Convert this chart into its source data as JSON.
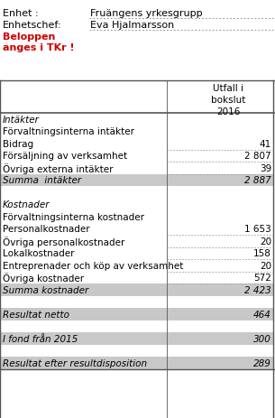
{
  "header_label1": "Enhet :",
  "header_value1": "Fruängens yrkesgrupp",
  "header_label2": "Enhetschef:",
  "header_value2": "Eva Hjalmarsson",
  "header_warning": "Beloppen\nanges i TKr !",
  "col_header": "Utfall i\nbokslut\n2016",
  "rows": [
    {
      "label": "Intäkter",
      "value": null,
      "style": "italic",
      "bg": null,
      "dotted": false
    },
    {
      "label": "Förvaltningsinterna intäkter",
      "value": null,
      "style": "normal",
      "bg": null,
      "dotted": false
    },
    {
      "label": "Bidrag",
      "value": "41",
      "style": "normal",
      "bg": null,
      "dotted": true
    },
    {
      "label": "Försäljning av verksamhet",
      "value": "2 807",
      "style": "normal",
      "bg": null,
      "dotted": true
    },
    {
      "label": "Övriga externa intäkter",
      "value": "39",
      "style": "normal",
      "bg": null,
      "dotted": true
    },
    {
      "label": "Summa  intäkter",
      "value": "2 887",
      "style": "italic",
      "bg": "#c8c8c8",
      "dotted": false
    },
    {
      "label": "",
      "value": null,
      "style": "normal",
      "bg": null,
      "dotted": false
    },
    {
      "label": "Kostnader",
      "value": null,
      "style": "italic",
      "bg": null,
      "dotted": false
    },
    {
      "label": "Förvaltningsinterna kostnader",
      "value": null,
      "style": "normal",
      "bg": null,
      "dotted": false
    },
    {
      "label": "Personalkostnader",
      "value": "1 653",
      "style": "normal",
      "bg": null,
      "dotted": true
    },
    {
      "label": "Övriga personalkostnader",
      "value": "20",
      "style": "normal",
      "bg": null,
      "dotted": true
    },
    {
      "label": "Lokalkostnader",
      "value": "158",
      "style": "normal",
      "bg": null,
      "dotted": true
    },
    {
      "label": "Entreprenader och köp av verksamhet",
      "value": "20",
      "style": "normal",
      "bg": null,
      "dotted": true
    },
    {
      "label": "Övriga kostnader",
      "value": "572",
      "style": "normal",
      "bg": null,
      "dotted": true
    },
    {
      "label": "Summa kostnader",
      "value": "2 423",
      "style": "italic",
      "bg": "#c8c8c8",
      "dotted": false
    },
    {
      "label": "",
      "value": null,
      "style": "normal",
      "bg": null,
      "dotted": false
    },
    {
      "label": "Resultat netto",
      "value": "464",
      "style": "italic",
      "bg": "#c8c8c8",
      "dotted": false
    },
    {
      "label": "",
      "value": null,
      "style": "normal",
      "bg": null,
      "dotted": false
    },
    {
      "label": "I fond från 2015",
      "value": "300",
      "style": "italic",
      "bg": "#c8c8c8",
      "dotted": false
    },
    {
      "label": "",
      "value": null,
      "style": "normal",
      "bg": null,
      "dotted": false
    },
    {
      "label": "Resultat efter resultdisposition",
      "value": "289",
      "style": "italic",
      "bg": "#c8c8c8",
      "dotted": false
    }
  ],
  "border_color": "#555555",
  "dotted_color": "#999999",
  "bg_color": "#ffffff",
  "text_color": "#000000",
  "red_color": "#cc0000"
}
